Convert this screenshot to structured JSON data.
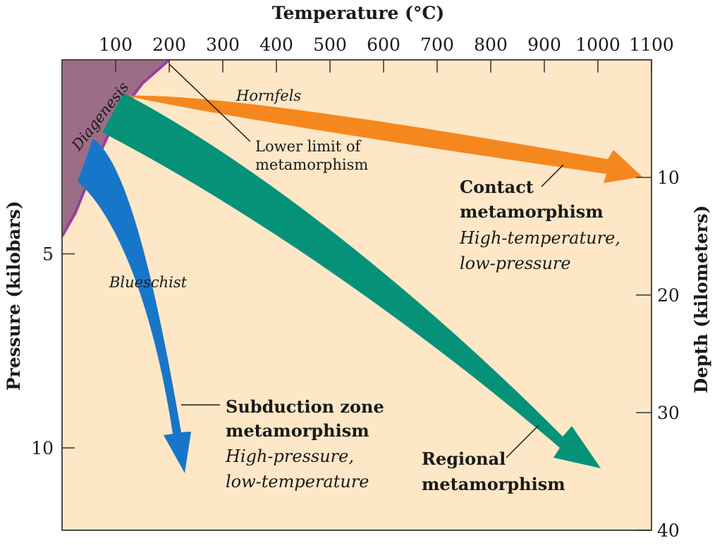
{
  "chart_data": {
    "type": "area",
    "xlabel": "Temperature (°C)",
    "ylabel_left": "Pressure (kilobars)",
    "ylabel_right": "Depth (kilometers)",
    "xlim": [
      0,
      1100
    ],
    "depth_lim": [
      0,
      40
    ],
    "x_ticks": [
      100,
      200,
      300,
      400,
      500,
      600,
      700,
      800,
      900,
      1000,
      1100
    ],
    "pressure_ticks": [
      5,
      10
    ],
    "depth_ticks": [
      10,
      20,
      30,
      40
    ],
    "colors": {
      "background": "#fde7c6",
      "diagenesis": "#9c6d86",
      "diagenesis_boundary": "#9a3f9c",
      "contact": "#f5871f",
      "regional": "#059279",
      "subduction": "#1876c9"
    },
    "regions": [
      {
        "id": "diagenesis",
        "label": "Diagenesis",
        "boundary_temperature_depth_km": [
          [
            200,
            0
          ],
          [
            150,
            2
          ],
          [
            100,
            5
          ],
          [
            60,
            9
          ],
          [
            25,
            13
          ],
          [
            0,
            15
          ]
        ]
      }
    ],
    "paths": [
      {
        "id": "contact",
        "label": "Hornfels",
        "title": "Contact metamorphism",
        "subtitle": [
          "High-temperature,",
          "low-pressure"
        ],
        "start_temperature_c": 200,
        "end_temperature_c": 1100,
        "start_depth_km": 0,
        "end_depth_km": 10
      },
      {
        "id": "regional",
        "title": "Regional metamorphism",
        "start_temperature_c": 120,
        "end_temperature_c": 1000,
        "start_depth_km": 3,
        "end_depth_km": 35
      },
      {
        "id": "subduction",
        "label": "Blueschist",
        "title": "Subduction zone metamorphism",
        "subtitle": [
          "High-pressure,",
          "low-temperature"
        ],
        "start_temperature_c": 50,
        "end_temperature_c": 220,
        "start_depth_km": 7,
        "end_depth_km": 35
      }
    ],
    "annotations": [
      {
        "id": "lower-limit",
        "lines": [
          "Lower limit of",
          "metamorphism"
        ]
      }
    ]
  }
}
